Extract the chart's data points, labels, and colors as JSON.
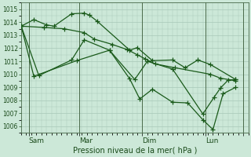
{
  "xlabel": "Pression niveau de la mer( hPa )",
  "bg_color": "#cce8d8",
  "grid_color": "#a8c8b8",
  "line_color": "#1a5a1a",
  "ylim": [
    1005.5,
    1015.5
  ],
  "yticks": [
    1006,
    1007,
    1008,
    1009,
    1010,
    1011,
    1012,
    1013,
    1014,
    1015
  ],
  "xlim": [
    0,
    9.0
  ],
  "vline_positions": [
    0.3,
    2.3,
    4.8,
    7.3,
    8.8
  ],
  "xtick_positions": [
    0.3,
    2.3,
    4.8,
    7.3,
    8.8
  ],
  "xtick_labels": [
    "Sam",
    "Mar",
    "Dim",
    "Lun",
    ""
  ],
  "series1_x": [
    0.0,
    0.5,
    1.0,
    1.3,
    2.0,
    2.5,
    2.7,
    3.0,
    4.3,
    4.6,
    5.2,
    6.0,
    6.5,
    7.0,
    7.5,
    8.5
  ],
  "series1_y": [
    1013.7,
    1014.2,
    1013.8,
    1013.7,
    1014.65,
    1014.7,
    1014.55,
    1014.1,
    1011.85,
    1012.05,
    1011.05,
    1011.1,
    1010.5,
    1011.1,
    1010.75,
    1009.6
  ],
  "series2_x": [
    0.0,
    0.9,
    1.7,
    2.5,
    2.9,
    3.6,
    4.2,
    4.6,
    4.9,
    5.3,
    6.1,
    7.5,
    7.9,
    8.5
  ],
  "series2_y": [
    1013.7,
    1013.6,
    1013.5,
    1013.2,
    1012.7,
    1012.3,
    1011.9,
    1011.5,
    1011.2,
    1010.8,
    1010.5,
    1010.0,
    1009.7,
    1009.5
  ],
  "series3_x": [
    0.0,
    0.7,
    2.0,
    2.5,
    3.5,
    4.3,
    4.7,
    5.2,
    6.0,
    6.6,
    7.2,
    7.6,
    8.0,
    8.5
  ],
  "series3_y": [
    1013.7,
    1009.9,
    1011.1,
    1012.65,
    1011.85,
    1009.65,
    1008.1,
    1008.85,
    1007.85,
    1007.8,
    1006.5,
    1005.75,
    1008.5,
    1009.0
  ],
  "series4_x": [
    0.0,
    0.5,
    2.2,
    3.5,
    4.5,
    5.0,
    6.0,
    7.2,
    7.65,
    7.9,
    8.2,
    8.5
  ],
  "series4_y": [
    1013.7,
    1009.85,
    1011.05,
    1011.85,
    1009.6,
    1011.0,
    1010.4,
    1006.95,
    1008.25,
    1008.95,
    1009.55,
    1009.6
  ],
  "marker": "+",
  "markersize": 4,
  "linewidth": 0.9
}
